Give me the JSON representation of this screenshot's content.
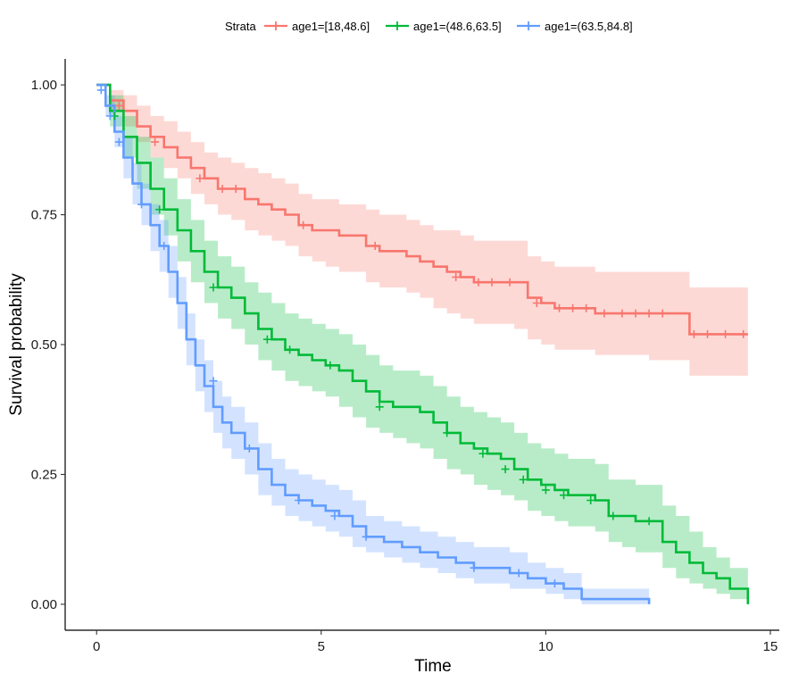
{
  "chart_data": {
    "type": "line",
    "title": "",
    "xlabel": "Time",
    "ylabel": "Survival probability",
    "xlim": [
      -0.7,
      15.2
    ],
    "ylim": [
      -0.05,
      1.05
    ],
    "xticks": [
      0,
      5,
      10,
      15
    ],
    "xtick_labels": [
      "0",
      "5",
      "10",
      "15"
    ],
    "yticks": [
      0,
      0.25,
      0.5,
      0.75,
      1.0
    ],
    "ytick_labels": [
      "0.00",
      "0.25",
      "0.50",
      "0.75",
      "1.00"
    ],
    "grid": false,
    "legend": {
      "title": "Strata",
      "position": "top"
    },
    "series": [
      {
        "name": "age1=[18,48.6]",
        "color": "#F8766D",
        "band_color": "#F8766D",
        "x": [
          0,
          0.3,
          0.6,
          0.9,
          1.2,
          1.5,
          1.8,
          2.1,
          2.4,
          2.7,
          3.0,
          3.3,
          3.6,
          3.9,
          4.2,
          4.5,
          4.8,
          5.1,
          5.4,
          5.7,
          6.0,
          6.3,
          6.6,
          6.9,
          7.2,
          7.5,
          7.8,
          8.1,
          8.4,
          8.7,
          9.0,
          9.3,
          9.6,
          9.9,
          10.2,
          10.5,
          10.8,
          11.1,
          11.4,
          11.7,
          12.0,
          12.3,
          12.6,
          12.9,
          13.2,
          13.5,
          13.8,
          14.1,
          14.5
        ],
        "y": [
          1.0,
          0.97,
          0.95,
          0.92,
          0.9,
          0.88,
          0.86,
          0.84,
          0.82,
          0.8,
          0.8,
          0.78,
          0.77,
          0.76,
          0.75,
          0.73,
          0.72,
          0.72,
          0.71,
          0.71,
          0.69,
          0.68,
          0.68,
          0.67,
          0.66,
          0.65,
          0.64,
          0.63,
          0.62,
          0.62,
          0.62,
          0.62,
          0.59,
          0.58,
          0.57,
          0.57,
          0.57,
          0.56,
          0.56,
          0.56,
          0.56,
          0.56,
          0.56,
          0.56,
          0.52,
          0.52,
          0.52,
          0.52,
          0.52
        ],
        "lower": [
          1.0,
          0.95,
          0.92,
          0.89,
          0.86,
          0.84,
          0.82,
          0.79,
          0.77,
          0.75,
          0.74,
          0.72,
          0.71,
          0.7,
          0.69,
          0.67,
          0.66,
          0.65,
          0.64,
          0.64,
          0.62,
          0.61,
          0.61,
          0.6,
          0.59,
          0.57,
          0.56,
          0.55,
          0.54,
          0.54,
          0.54,
          0.53,
          0.51,
          0.5,
          0.49,
          0.49,
          0.49,
          0.48,
          0.48,
          0.48,
          0.48,
          0.47,
          0.47,
          0.47,
          0.44,
          0.44,
          0.44,
          0.44,
          0.44
        ],
        "upper": [
          1.0,
          0.99,
          0.98,
          0.96,
          0.94,
          0.93,
          0.91,
          0.89,
          0.87,
          0.86,
          0.85,
          0.84,
          0.83,
          0.82,
          0.81,
          0.79,
          0.78,
          0.78,
          0.77,
          0.77,
          0.76,
          0.75,
          0.75,
          0.74,
          0.73,
          0.72,
          0.72,
          0.71,
          0.7,
          0.7,
          0.7,
          0.7,
          0.67,
          0.66,
          0.65,
          0.65,
          0.65,
          0.64,
          0.64,
          0.64,
          0.64,
          0.64,
          0.64,
          0.64,
          0.61,
          0.61,
          0.61,
          0.61,
          0.61
        ],
        "censor_x": [
          0.5,
          1.3,
          2.3,
          2.8,
          3.1,
          4.6,
          6.2,
          8.0,
          8.5,
          8.8,
          9.2,
          9.8,
          10.3,
          10.6,
          10.9,
          11.3,
          11.7,
          12.0,
          12.3,
          12.6,
          13.3,
          13.6,
          14.0,
          14.4
        ],
        "censor_y": [
          0.96,
          0.89,
          0.82,
          0.8,
          0.8,
          0.73,
          0.69,
          0.63,
          0.62,
          0.62,
          0.62,
          0.58,
          0.57,
          0.57,
          0.57,
          0.56,
          0.56,
          0.56,
          0.56,
          0.56,
          0.52,
          0.52,
          0.52,
          0.52
        ]
      },
      {
        "name": "age1=(48.6,63.5]",
        "color": "#00BA38",
        "band_color": "#00BA38",
        "x": [
          0,
          0.3,
          0.6,
          0.9,
          1.2,
          1.5,
          1.8,
          2.1,
          2.4,
          2.7,
          3.0,
          3.3,
          3.6,
          3.9,
          4.2,
          4.5,
          4.8,
          5.1,
          5.4,
          5.7,
          6.0,
          6.3,
          6.6,
          6.9,
          7.2,
          7.5,
          7.8,
          8.1,
          8.4,
          8.7,
          9.0,
          9.3,
          9.6,
          9.9,
          10.2,
          10.5,
          10.8,
          11.1,
          11.4,
          11.7,
          12.0,
          12.3,
          12.6,
          12.9,
          13.2,
          13.5,
          13.8,
          14.1,
          14.5
        ],
        "y": [
          1.0,
          0.95,
          0.9,
          0.85,
          0.8,
          0.76,
          0.72,
          0.68,
          0.64,
          0.61,
          0.59,
          0.56,
          0.53,
          0.51,
          0.49,
          0.48,
          0.47,
          0.46,
          0.45,
          0.43,
          0.41,
          0.39,
          0.38,
          0.38,
          0.37,
          0.35,
          0.33,
          0.31,
          0.3,
          0.29,
          0.28,
          0.26,
          0.24,
          0.23,
          0.22,
          0.21,
          0.21,
          0.2,
          0.17,
          0.17,
          0.16,
          0.16,
          0.12,
          0.1,
          0.08,
          0.06,
          0.05,
          0.03,
          0.0
        ],
        "lower": [
          1.0,
          0.92,
          0.86,
          0.8,
          0.75,
          0.71,
          0.66,
          0.62,
          0.58,
          0.55,
          0.53,
          0.5,
          0.47,
          0.45,
          0.43,
          0.42,
          0.41,
          0.4,
          0.38,
          0.36,
          0.34,
          0.33,
          0.32,
          0.31,
          0.3,
          0.28,
          0.26,
          0.25,
          0.23,
          0.22,
          0.21,
          0.2,
          0.18,
          0.17,
          0.16,
          0.15,
          0.15,
          0.14,
          0.12,
          0.11,
          0.1,
          0.1,
          0.07,
          0.05,
          0.04,
          0.03,
          0.02,
          0.01,
          0.0
        ],
        "upper": [
          1.0,
          0.98,
          0.94,
          0.9,
          0.86,
          0.82,
          0.78,
          0.74,
          0.7,
          0.67,
          0.65,
          0.62,
          0.6,
          0.58,
          0.56,
          0.55,
          0.54,
          0.53,
          0.52,
          0.5,
          0.48,
          0.46,
          0.45,
          0.45,
          0.44,
          0.42,
          0.4,
          0.38,
          0.37,
          0.36,
          0.35,
          0.33,
          0.31,
          0.3,
          0.29,
          0.28,
          0.28,
          0.27,
          0.24,
          0.24,
          0.23,
          0.23,
          0.19,
          0.17,
          0.14,
          0.11,
          0.09,
          0.07,
          0.04
        ],
        "censor_x": [
          0.4,
          1.4,
          2.6,
          3.8,
          4.3,
          5.2,
          6.3,
          7.8,
          8.6,
          9.1,
          9.5,
          10.0,
          10.4,
          11.0,
          11.5,
          12.3
        ],
        "censor_y": [
          0.94,
          0.76,
          0.61,
          0.51,
          0.49,
          0.46,
          0.38,
          0.33,
          0.29,
          0.26,
          0.24,
          0.22,
          0.21,
          0.2,
          0.17,
          0.16
        ]
      },
      {
        "name": "age1=(63.5,84.8]",
        "color": "#619CFF",
        "band_color": "#619CFF",
        "x": [
          0,
          0.2,
          0.4,
          0.6,
          0.8,
          1.0,
          1.2,
          1.4,
          1.6,
          1.8,
          2.0,
          2.2,
          2.4,
          2.6,
          2.8,
          3.0,
          3.3,
          3.6,
          3.9,
          4.2,
          4.5,
          4.8,
          5.1,
          5.4,
          5.7,
          6.0,
          6.4,
          6.8,
          7.2,
          7.6,
          8.0,
          8.4,
          8.8,
          9.2,
          9.6,
          10.0,
          10.4,
          10.8,
          11.2,
          11.6,
          12.0,
          12.3
        ],
        "y": [
          1.0,
          0.96,
          0.91,
          0.86,
          0.81,
          0.77,
          0.73,
          0.69,
          0.64,
          0.58,
          0.51,
          0.46,
          0.42,
          0.38,
          0.35,
          0.33,
          0.3,
          0.26,
          0.23,
          0.21,
          0.2,
          0.19,
          0.18,
          0.17,
          0.15,
          0.13,
          0.12,
          0.11,
          0.1,
          0.09,
          0.08,
          0.07,
          0.07,
          0.06,
          0.05,
          0.04,
          0.03,
          0.01,
          0.01,
          0.01,
          0.01,
          0.0
        ],
        "lower": [
          1.0,
          0.94,
          0.88,
          0.82,
          0.77,
          0.73,
          0.68,
          0.64,
          0.59,
          0.53,
          0.46,
          0.41,
          0.37,
          0.33,
          0.3,
          0.28,
          0.25,
          0.21,
          0.19,
          0.17,
          0.16,
          0.15,
          0.14,
          0.13,
          0.11,
          0.1,
          0.09,
          0.08,
          0.07,
          0.06,
          0.05,
          0.04,
          0.04,
          0.03,
          0.03,
          0.02,
          0.01,
          0.0,
          0.0,
          0.0,
          0.0,
          0.0
        ],
        "upper": [
          1.0,
          0.98,
          0.94,
          0.9,
          0.85,
          0.81,
          0.77,
          0.74,
          0.69,
          0.63,
          0.56,
          0.51,
          0.47,
          0.43,
          0.4,
          0.38,
          0.35,
          0.31,
          0.28,
          0.26,
          0.25,
          0.24,
          0.23,
          0.22,
          0.2,
          0.17,
          0.16,
          0.15,
          0.14,
          0.13,
          0.12,
          0.11,
          0.11,
          0.1,
          0.08,
          0.07,
          0.06,
          0.03,
          0.03,
          0.03,
          0.03,
          0.02
        ],
        "censor_x": [
          0.1,
          0.3,
          0.5,
          1.0,
          1.5,
          2.6,
          3.4,
          4.5,
          5.3,
          6.0,
          8.4,
          9.4,
          10.2
        ],
        "censor_y": [
          0.99,
          0.94,
          0.89,
          0.77,
          0.69,
          0.43,
          0.3,
          0.2,
          0.17,
          0.13,
          0.07,
          0.06,
          0.04
        ]
      }
    ]
  }
}
